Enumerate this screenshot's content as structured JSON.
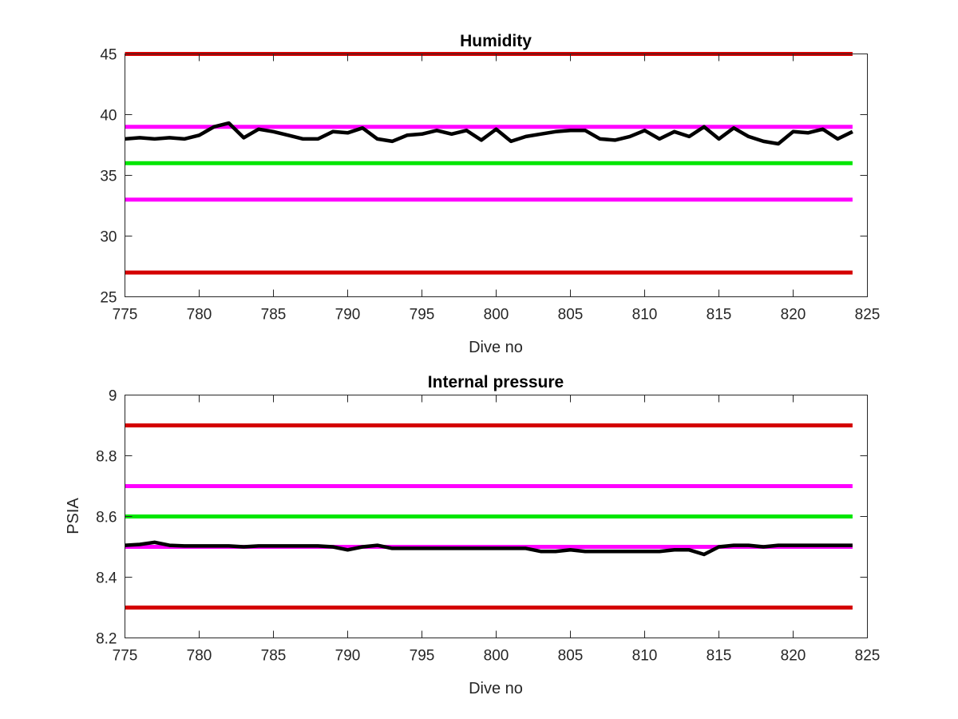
{
  "chart_data": [
    {
      "type": "line",
      "title": "Humidity",
      "xlabel": "Dive no",
      "ylabel": "",
      "xlim": [
        775,
        825
      ],
      "ylim": [
        25,
        45
      ],
      "xticks": [
        775,
        780,
        785,
        790,
        795,
        800,
        805,
        810,
        815,
        820,
        825
      ],
      "yticks": [
        25,
        30,
        35,
        40,
        45
      ],
      "grid": false,
      "reference_lines": [
        {
          "y": 45,
          "color": "#d40000"
        },
        {
          "y": 39,
          "color": "#ff00ff"
        },
        {
          "y": 36,
          "color": "#00e600"
        },
        {
          "y": 33,
          "color": "#ff00ff"
        },
        {
          "y": 27,
          "color": "#d40000"
        }
      ],
      "series": [
        {
          "color": "#000000",
          "x": [
            775,
            776,
            777,
            778,
            779,
            780,
            781,
            782,
            783,
            784,
            785,
            786,
            787,
            788,
            789,
            790,
            791,
            792,
            793,
            794,
            795,
            796,
            797,
            798,
            799,
            800,
            801,
            802,
            803,
            804,
            805,
            806,
            807,
            808,
            809,
            810,
            811,
            812,
            813,
            814,
            815,
            816,
            817,
            818,
            819,
            820,
            821,
            822,
            823,
            824
          ],
          "values": [
            38.0,
            38.1,
            38.0,
            38.1,
            38.0,
            38.3,
            39.0,
            39.3,
            38.1,
            38.8,
            38.6,
            38.3,
            38.0,
            38.0,
            38.6,
            38.5,
            38.9,
            38.0,
            37.8,
            38.3,
            38.4,
            38.7,
            38.4,
            38.7,
            37.9,
            38.8,
            37.8,
            38.2,
            38.4,
            38.6,
            38.7,
            38.7,
            38.0,
            37.9,
            38.2,
            38.7,
            38.0,
            38.6,
            38.2,
            39.0,
            38.0,
            38.9,
            38.2,
            37.8,
            37.6,
            38.6,
            38.5,
            38.8,
            38.0,
            38.6
          ]
        }
      ]
    },
    {
      "type": "line",
      "title": "Internal pressure",
      "xlabel": "Dive no",
      "ylabel": "PSIA",
      "xlim": [
        775,
        825
      ],
      "ylim": [
        8.2,
        9
      ],
      "xticks": [
        775,
        780,
        785,
        790,
        795,
        800,
        805,
        810,
        815,
        820,
        825
      ],
      "yticks": [
        8.2,
        8.4,
        8.6,
        8.8,
        9
      ],
      "grid": false,
      "reference_lines": [
        {
          "y": 8.9,
          "color": "#d40000"
        },
        {
          "y": 8.7,
          "color": "#ff00ff"
        },
        {
          "y": 8.6,
          "color": "#00e600"
        },
        {
          "y": 8.5,
          "color": "#ff00ff"
        },
        {
          "y": 8.3,
          "color": "#d40000"
        }
      ],
      "series": [
        {
          "color": "#000000",
          "x": [
            775,
            776,
            777,
            778,
            779,
            780,
            781,
            782,
            783,
            784,
            785,
            786,
            787,
            788,
            789,
            790,
            791,
            792,
            793,
            794,
            795,
            796,
            797,
            798,
            799,
            800,
            801,
            802,
            803,
            804,
            805,
            806,
            807,
            808,
            809,
            810,
            811,
            812,
            813,
            814,
            815,
            816,
            817,
            818,
            819,
            820,
            821,
            822,
            823,
            824
          ],
          "values": [
            8.505,
            8.508,
            8.515,
            8.505,
            8.503,
            8.503,
            8.503,
            8.503,
            8.5,
            8.503,
            8.503,
            8.503,
            8.503,
            8.503,
            8.5,
            8.49,
            8.5,
            8.505,
            8.495,
            8.495,
            8.495,
            8.495,
            8.495,
            8.495,
            8.495,
            8.495,
            8.495,
            8.495,
            8.485,
            8.485,
            8.49,
            8.485,
            8.485,
            8.485,
            8.485,
            8.485,
            8.485,
            8.49,
            8.49,
            8.475,
            8.5,
            8.505,
            8.505,
            8.5,
            8.505,
            8.505,
            8.505,
            8.505,
            8.505,
            8.505
          ]
        }
      ]
    }
  ]
}
